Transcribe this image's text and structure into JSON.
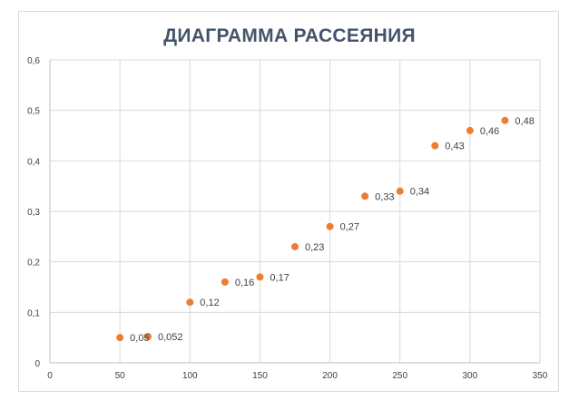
{
  "chart_data": {
    "type": "scatter",
    "title": "ДИАГРАММА РАССЕЯНИЯ",
    "xlim": [
      0,
      350
    ],
    "ylim": [
      0,
      0.6
    ],
    "x_ticks": [
      0,
      50,
      100,
      150,
      200,
      250,
      300,
      350
    ],
    "x_tick_labels": [
      "0",
      "50",
      "100",
      "150",
      "200",
      "250",
      "300",
      "350"
    ],
    "y_ticks": [
      0,
      0.1,
      0.2,
      0.3,
      0.4,
      0.5,
      0.6
    ],
    "y_tick_labels": [
      "0",
      "0,1",
      "0,2",
      "0,3",
      "0,4",
      "0,5",
      "0,6"
    ],
    "grid": true,
    "marker_color": "#ed7d31",
    "points": [
      {
        "x": 50,
        "y": 0.05,
        "label": "0,05"
      },
      {
        "x": 70,
        "y": 0.052,
        "label": "0,052"
      },
      {
        "x": 100,
        "y": 0.12,
        "label": "0,12"
      },
      {
        "x": 125,
        "y": 0.16,
        "label": "0,16"
      },
      {
        "x": 150,
        "y": 0.17,
        "label": "0,17"
      },
      {
        "x": 175,
        "y": 0.23,
        "label": "0,23"
      },
      {
        "x": 200,
        "y": 0.27,
        "label": "0,27"
      },
      {
        "x": 225,
        "y": 0.33,
        "label": "0,33"
      },
      {
        "x": 250,
        "y": 0.34,
        "label": "0,34"
      },
      {
        "x": 275,
        "y": 0.43,
        "label": "0,43"
      },
      {
        "x": 300,
        "y": 0.46,
        "label": "0,46"
      },
      {
        "x": 325,
        "y": 0.48,
        "label": "0,48"
      }
    ]
  }
}
